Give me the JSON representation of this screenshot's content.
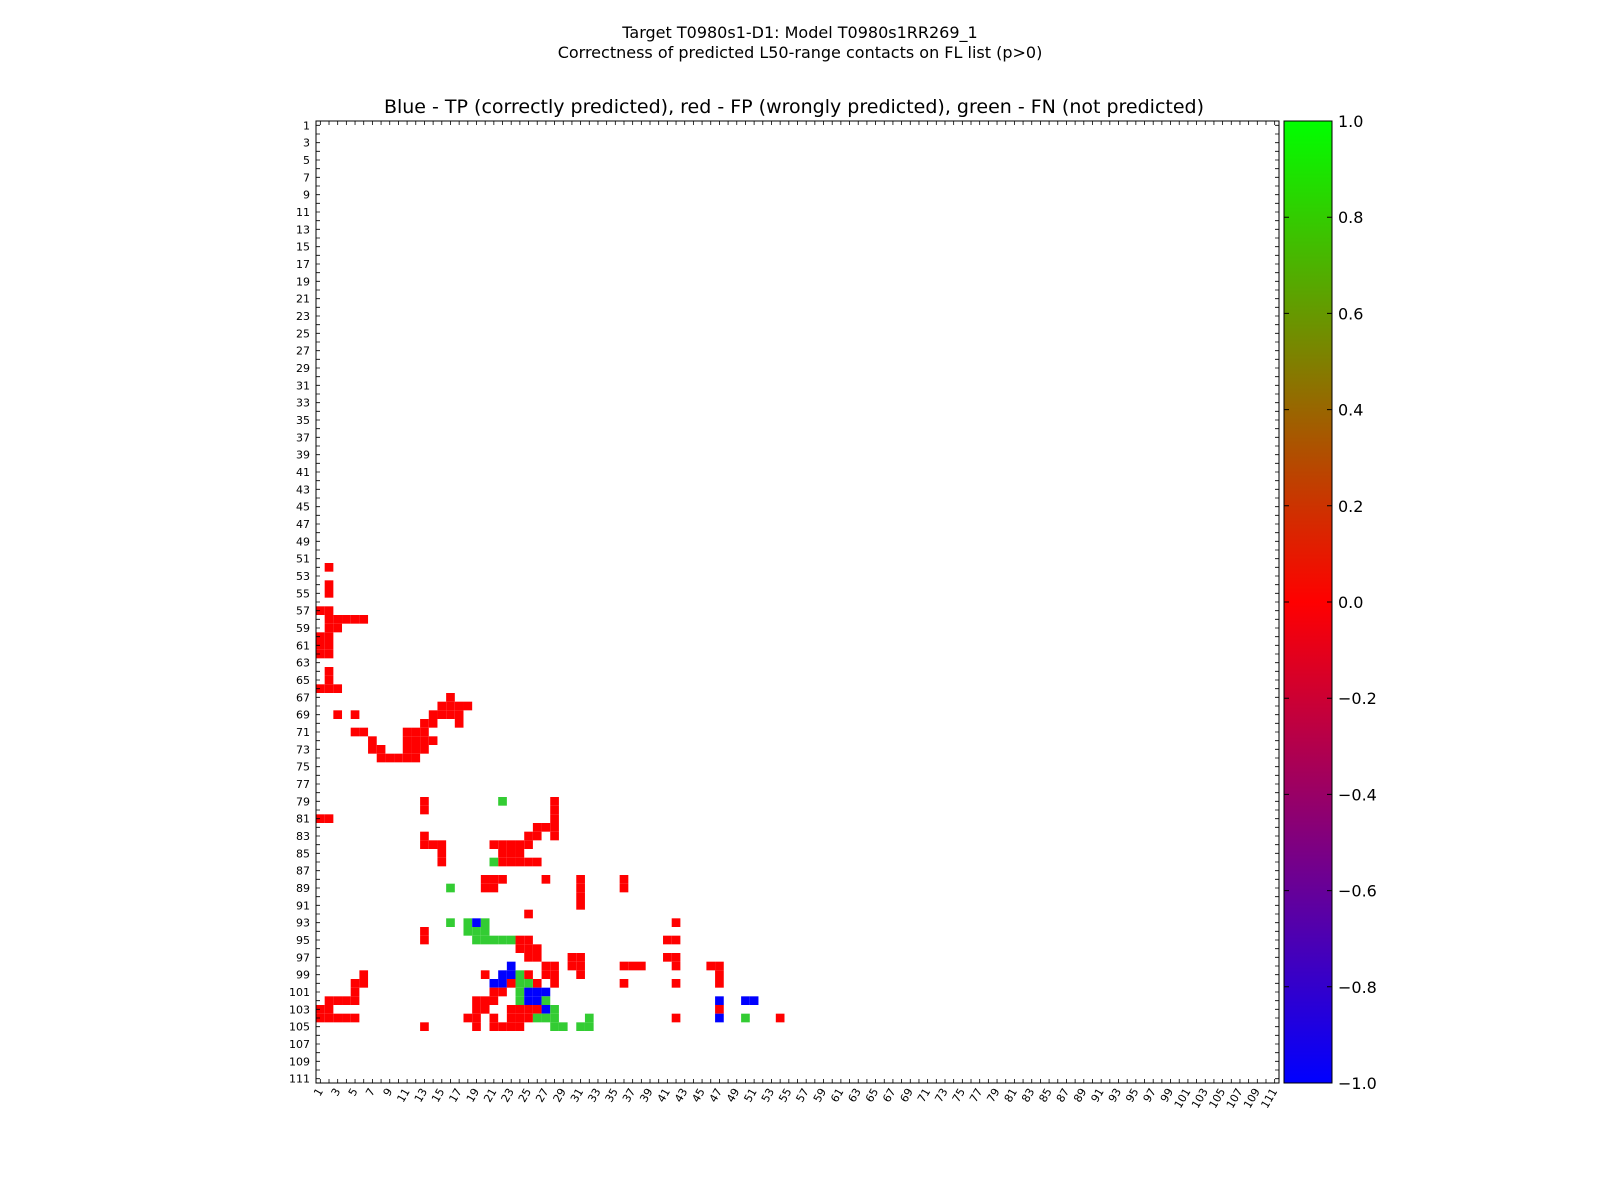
{
  "chart_data": {
    "type": "heatmap",
    "title_line1": "Target T0980s1-D1: Model T0980s1RR269_1",
    "title_line2": "Correctness of predicted L50-range contacts on FL list (p>0)",
    "subtitle": "Blue - TP (correctly predicted), red - FP (wrongly predicted), green - FN (not predicted)",
    "xlabel": "",
    "ylabel": "",
    "n": 111,
    "xlim": [
      1,
      111
    ],
    "ylim": [
      1,
      111
    ],
    "tick_labels": [
      "1",
      "3",
      "5",
      "7",
      "9",
      "11",
      "13",
      "15",
      "17",
      "19",
      "21",
      "23",
      "25",
      "27",
      "29",
      "31",
      "33",
      "35",
      "37",
      "39",
      "41",
      "43",
      "45",
      "47",
      "49",
      "51",
      "53",
      "55",
      "57",
      "59",
      "61",
      "63",
      "65",
      "67",
      "69",
      "71",
      "73",
      "75",
      "77",
      "79",
      "81",
      "83",
      "85",
      "87",
      "89",
      "91",
      "93",
      "95",
      "97",
      "99",
      "101",
      "103",
      "105",
      "107",
      "109",
      "111"
    ],
    "colorbar": {
      "range": [
        -1.0,
        1.0
      ],
      "tick_labels": [
        "1.0",
        "0.8",
        "0.6",
        "0.4",
        "0.2",
        "0.0",
        "−0.2",
        "−0.4",
        "−0.6",
        "−0.8",
        "−1.0"
      ],
      "colors": [
        "#0000ff",
        "#ff0000",
        "#00ff00"
      ]
    },
    "colors": {
      "TP": "#0000ff",
      "FP": "#ff0000",
      "FN": "#33cc33"
    },
    "cells": [
      [
        "FP",
        2,
        58
      ],
      [
        "FP",
        3,
        58
      ],
      [
        "FP",
        4,
        58
      ],
      [
        "FP",
        5,
        58
      ],
      [
        "FP",
        6,
        58
      ],
      [
        "FP",
        2,
        59
      ],
      [
        "FP",
        3,
        59
      ],
      [
        "FP",
        1,
        60
      ],
      [
        "FP",
        2,
        60
      ],
      [
        "FP",
        1,
        61
      ],
      [
        "FP",
        2,
        61
      ],
      [
        "FP",
        1,
        62
      ],
      [
        "FP",
        2,
        62
      ],
      [
        "FP",
        2,
        64
      ],
      [
        "FP",
        2,
        65
      ],
      [
        "FP",
        1,
        66
      ],
      [
        "FP",
        2,
        66
      ],
      [
        "FP",
        3,
        66
      ],
      [
        "FP",
        2,
        52
      ],
      [
        "FP",
        2,
        54
      ],
      [
        "FP",
        2,
        55
      ],
      [
        "FP",
        1,
        57
      ],
      [
        "FP",
        2,
        57
      ],
      [
        "FP",
        3,
        69
      ],
      [
        "FP",
        5,
        69
      ],
      [
        "FP",
        5,
        71
      ],
      [
        "FP",
        6,
        71
      ],
      [
        "FP",
        7,
        72
      ],
      [
        "FP",
        7,
        73
      ],
      [
        "FP",
        8,
        73
      ],
      [
        "FP",
        8,
        74
      ],
      [
        "FP",
        9,
        74
      ],
      [
        "FP",
        10,
        74
      ],
      [
        "FP",
        11,
        74
      ],
      [
        "FP",
        12,
        74
      ],
      [
        "FP",
        11,
        73
      ],
      [
        "FP",
        12,
        73
      ],
      [
        "FP",
        13,
        73
      ],
      [
        "FP",
        11,
        72
      ],
      [
        "FP",
        12,
        72
      ],
      [
        "FP",
        13,
        72
      ],
      [
        "FP",
        14,
        72
      ],
      [
        "FP",
        11,
        71
      ],
      [
        "FP",
        12,
        71
      ],
      [
        "FP",
        13,
        71
      ],
      [
        "FP",
        13,
        70
      ],
      [
        "FP",
        14,
        70
      ],
      [
        "FP",
        14,
        69
      ],
      [
        "FP",
        15,
        69
      ],
      [
        "FP",
        15,
        68
      ],
      [
        "FP",
        16,
        68
      ],
      [
        "FP",
        17,
        68
      ],
      [
        "FP",
        18,
        68
      ],
      [
        "FP",
        16,
        67
      ],
      [
        "FP",
        16,
        69
      ],
      [
        "FP",
        17,
        69
      ],
      [
        "FP",
        17,
        70
      ],
      [
        "FP",
        1,
        81
      ],
      [
        "FP",
        2,
        81
      ],
      [
        "FP",
        13,
        79
      ],
      [
        "FP",
        13,
        80
      ],
      [
        "FP",
        13,
        83
      ],
      [
        "FP",
        13,
        84
      ],
      [
        "FP",
        14,
        84
      ],
      [
        "FP",
        15,
        84
      ],
      [
        "FP",
        15,
        85
      ],
      [
        "FP",
        15,
        86
      ],
      [
        "FN",
        16,
        89
      ],
      [
        "FN",
        22,
        79
      ],
      [
        "FP",
        28,
        79
      ],
      [
        "FP",
        28,
        80
      ],
      [
        "FP",
        28,
        81
      ],
      [
        "FP",
        28,
        82
      ],
      [
        "FP",
        28,
        83
      ],
      [
        "FP",
        27,
        82
      ],
      [
        "FP",
        26,
        82
      ],
      [
        "FP",
        26,
        83
      ],
      [
        "FP",
        25,
        83
      ],
      [
        "FP",
        24,
        84
      ],
      [
        "FP",
        25,
        84
      ],
      [
        "FP",
        23,
        84
      ],
      [
        "FP",
        22,
        84
      ],
      [
        "FP",
        21,
        84
      ],
      [
        "FP",
        22,
        85
      ],
      [
        "FP",
        23,
        85
      ],
      [
        "FP",
        24,
        85
      ],
      [
        "FP",
        22,
        86
      ],
      [
        "FP",
        23,
        86
      ],
      [
        "FP",
        24,
        86
      ],
      [
        "FP",
        25,
        86
      ],
      [
        "FP",
        26,
        86
      ],
      [
        "FN",
        21,
        86
      ],
      [
        "FP",
        20,
        88
      ],
      [
        "FP",
        21,
        88
      ],
      [
        "FP",
        22,
        88
      ],
      [
        "FP",
        20,
        89
      ],
      [
        "FP",
        21,
        89
      ],
      [
        "FP",
        27,
        88
      ],
      [
        "FP",
        31,
        88
      ],
      [
        "FP",
        31,
        89
      ],
      [
        "FP",
        31,
        90
      ],
      [
        "FP",
        31,
        91
      ],
      [
        "FP",
        36,
        88
      ],
      [
        "FP",
        36,
        89
      ],
      [
        "FP",
        25,
        92
      ],
      [
        "FN",
        16,
        93
      ],
      [
        "FN",
        18,
        93
      ],
      [
        "TP",
        19,
        93
      ],
      [
        "FN",
        20,
        93
      ],
      [
        "FN",
        18,
        94
      ],
      [
        "FN",
        19,
        94
      ],
      [
        "FN",
        20,
        94
      ],
      [
        "FN",
        19,
        95
      ],
      [
        "FN",
        20,
        95
      ],
      [
        "FN",
        21,
        95
      ],
      [
        "FN",
        22,
        95
      ],
      [
        "FN",
        23,
        95
      ],
      [
        "FP",
        13,
        94
      ],
      [
        "FP",
        13,
        95
      ],
      [
        "FP",
        24,
        95
      ],
      [
        "FP",
        25,
        95
      ],
      [
        "FP",
        24,
        96
      ],
      [
        "FP",
        25,
        96
      ],
      [
        "FP",
        26,
        96
      ],
      [
        "FP",
        25,
        97
      ],
      [
        "FP",
        26,
        97
      ],
      [
        "FP",
        27,
        98
      ],
      [
        "FP",
        28,
        98
      ],
      [
        "FP",
        27,
        99
      ],
      [
        "FP",
        28,
        99
      ],
      [
        "FP",
        26,
        100
      ],
      [
        "FP",
        28,
        100
      ],
      [
        "TP",
        23,
        98
      ],
      [
        "TP",
        22,
        99
      ],
      [
        "TP",
        23,
        99
      ],
      [
        "FN",
        24,
        99
      ],
      [
        "FP",
        25,
        99
      ],
      [
        "TP",
        21,
        100
      ],
      [
        "TP",
        22,
        100
      ],
      [
        "FN",
        24,
        100
      ],
      [
        "FN",
        25,
        100
      ],
      [
        "FP",
        23,
        100
      ],
      [
        "FP",
        21,
        101
      ],
      [
        "FP",
        22,
        101
      ],
      [
        "FN",
        24,
        101
      ],
      [
        "TP",
        25,
        101
      ],
      [
        "TP",
        26,
        101
      ],
      [
        "TP",
        27,
        101
      ],
      [
        "FN",
        24,
        102
      ],
      [
        "TP",
        25,
        102
      ],
      [
        "TP",
        26,
        102
      ],
      [
        "FN",
        27,
        102
      ],
      [
        "FP",
        20,
        99
      ],
      [
        "FP",
        20,
        102
      ],
      [
        "FP",
        21,
        102
      ],
      [
        "FP",
        19,
        102
      ],
      [
        "FP",
        19,
        103
      ],
      [
        "FP",
        20,
        103
      ],
      [
        "FP",
        19,
        104
      ],
      [
        "FP",
        18,
        104
      ],
      [
        "FP",
        19,
        105
      ],
      [
        "FP",
        23,
        103
      ],
      [
        "FP",
        24,
        103
      ],
      [
        "FP",
        25,
        103
      ],
      [
        "FP",
        26,
        103
      ],
      [
        "TP",
        27,
        103
      ],
      [
        "FN",
        28,
        103
      ],
      [
        "FP",
        23,
        104
      ],
      [
        "FP",
        24,
        104
      ],
      [
        "FP",
        25,
        104
      ],
      [
        "FN",
        26,
        104
      ],
      [
        "FN",
        27,
        104
      ],
      [
        "FN",
        28,
        104
      ],
      [
        "FN",
        28,
        105
      ],
      [
        "FN",
        29,
        105
      ],
      [
        "FP",
        21,
        104
      ],
      [
        "FP",
        21,
        105
      ],
      [
        "FP",
        22,
        105
      ],
      [
        "FP",
        23,
        105
      ],
      [
        "FP",
        24,
        105
      ],
      [
        "FP",
        13,
        105
      ],
      [
        "FP",
        30,
        97
      ],
      [
        "FP",
        31,
        97
      ],
      [
        "FP",
        30,
        98
      ],
      [
        "FP",
        31,
        98
      ],
      [
        "FP",
        31,
        99
      ],
      [
        "FP",
        36,
        98
      ],
      [
        "FP",
        37,
        98
      ],
      [
        "FP",
        38,
        98
      ],
      [
        "FP",
        36,
        100
      ],
      [
        "FN",
        31,
        105
      ],
      [
        "FN",
        32,
        105
      ],
      [
        "FN",
        32,
        104
      ],
      [
        "FP",
        42,
        93
      ],
      [
        "FP",
        41,
        95
      ],
      [
        "FP",
        42,
        95
      ],
      [
        "FP",
        41,
        97
      ],
      [
        "FP",
        42,
        97
      ],
      [
        "FP",
        42,
        98
      ],
      [
        "FP",
        42,
        100
      ],
      [
        "FP",
        42,
        104
      ],
      [
        "FP",
        46,
        98
      ],
      [
        "FP",
        47,
        98
      ],
      [
        "FP",
        47,
        99
      ],
      [
        "FP",
        47,
        100
      ],
      [
        "TP",
        47,
        102
      ],
      [
        "FP",
        47,
        103
      ],
      [
        "TP",
        47,
        104
      ],
      [
        "TP",
        50,
        102
      ],
      [
        "TP",
        51,
        102
      ],
      [
        "FN",
        50,
        104
      ],
      [
        "FP",
        54,
        104
      ],
      [
        "FP",
        2,
        102
      ],
      [
        "FP",
        3,
        102
      ],
      [
        "FP",
        4,
        102
      ],
      [
        "FP",
        5,
        102
      ],
      [
        "FP",
        5,
        101
      ],
      [
        "FP",
        5,
        100
      ],
      [
        "FP",
        1,
        103
      ],
      [
        "FP",
        2,
        103
      ],
      [
        "FP",
        1,
        104
      ],
      [
        "FP",
        2,
        104
      ],
      [
        "FP",
        3,
        104
      ],
      [
        "FP",
        4,
        104
      ],
      [
        "FP",
        5,
        104
      ],
      [
        "FP",
        6,
        100
      ],
      [
        "FP",
        6,
        99
      ]
    ]
  }
}
